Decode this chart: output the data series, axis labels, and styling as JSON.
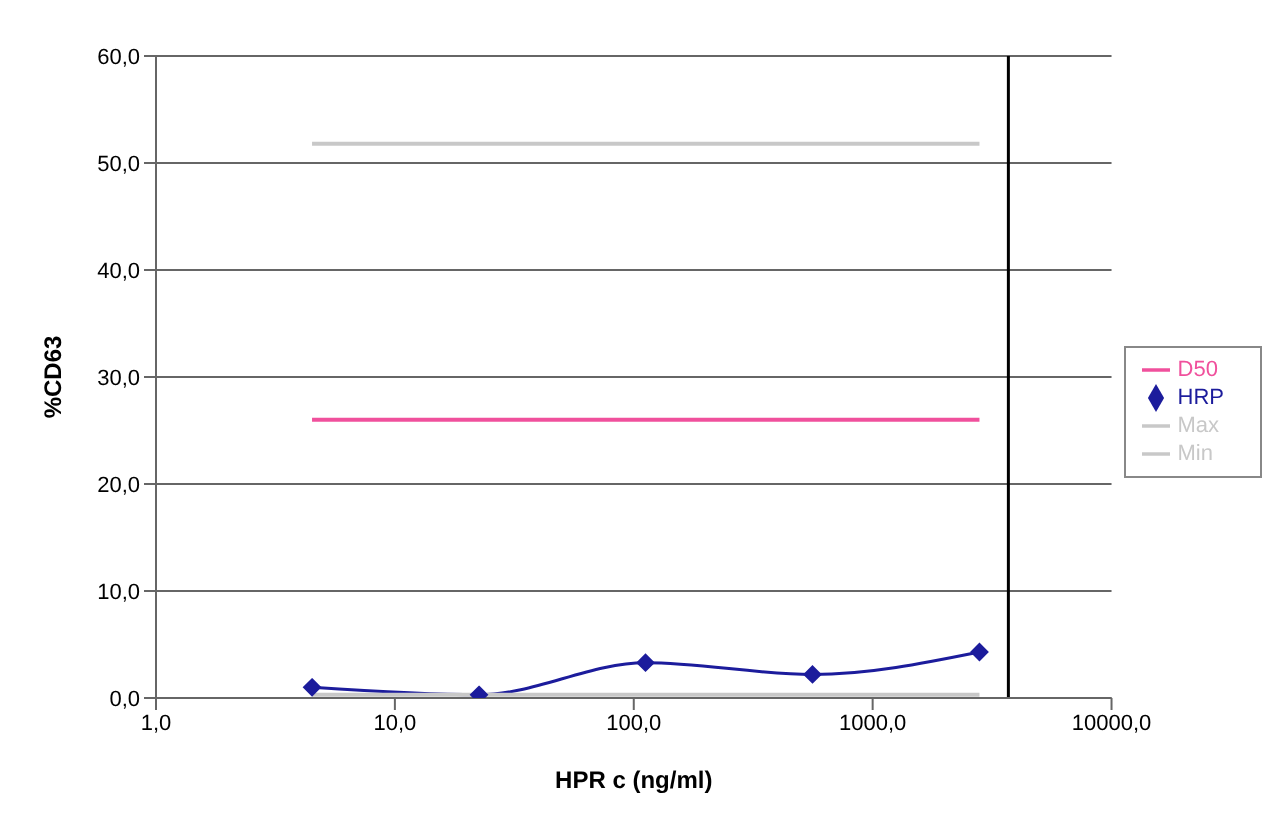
{
  "chart_data": {
    "type": "line",
    "xlabel": "HPR c (ng/ml)",
    "ylabel": "%CD63",
    "log": "x",
    "xlim": [
      1,
      10000
    ],
    "xticks": [
      {
        "value": 1,
        "label": "1,0"
      },
      {
        "value": 10,
        "label": "10,0"
      },
      {
        "value": 100,
        "label": "100,0"
      },
      {
        "value": 1000,
        "label": "1000,0"
      },
      {
        "value": 10000,
        "label": "10000,0"
      }
    ],
    "ylim": [
      0,
      60
    ],
    "yticks": [
      {
        "value": 0,
        "label": "0,0"
      },
      {
        "value": 10,
        "label": "10,0"
      },
      {
        "value": 20,
        "label": "20,0"
      },
      {
        "value": 30,
        "label": "30,0"
      },
      {
        "value": 40,
        "label": "40,0"
      },
      {
        "value": 50,
        "label": "50,0"
      },
      {
        "value": 60,
        "label": "60,0"
      }
    ],
    "grid": "y",
    "legend": "right",
    "series": [
      {
        "name": "HRP",
        "color": "#1c1c9c",
        "marker": "diamond",
        "x": [
          4.5,
          22.5,
          112,
          560,
          2800
        ],
        "values": [
          1.0,
          0.3,
          3.3,
          2.2,
          4.3
        ]
      },
      {
        "name": "D50",
        "color": "#f0509c",
        "marker": "none",
        "x": [
          4.5,
          2800
        ],
        "values": [
          26,
          26
        ]
      },
      {
        "name": "Max",
        "color": "#c8c8c8",
        "marker": "none",
        "x": [
          4.5,
          2800
        ],
        "values": [
          51.8,
          51.8
        ]
      },
      {
        "name": "Min",
        "color": "#c8c8c8",
        "marker": "none",
        "x": [
          4.5,
          2800
        ],
        "values": [
          0.3,
          0.3
        ]
      }
    ],
    "ref_lines": [
      {
        "axis": "x",
        "value": 3700,
        "color": "#000000"
      }
    ]
  }
}
